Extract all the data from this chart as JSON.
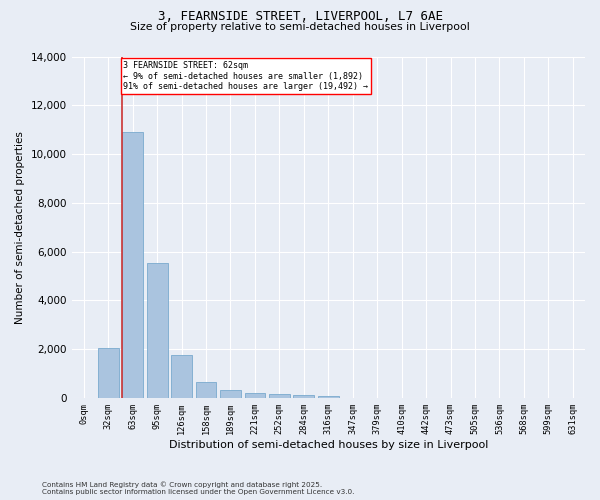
{
  "title_line1": "3, FEARNSIDE STREET, LIVERPOOL, L7 6AE",
  "title_line2": "Size of property relative to semi-detached houses in Liverpool",
  "xlabel": "Distribution of semi-detached houses by size in Liverpool",
  "ylabel": "Number of semi-detached properties",
  "categories": [
    "0sqm",
    "32sqm",
    "63sqm",
    "95sqm",
    "126sqm",
    "158sqm",
    "189sqm",
    "221sqm",
    "252sqm",
    "284sqm",
    "316sqm",
    "347sqm",
    "379sqm",
    "410sqm",
    "442sqm",
    "473sqm",
    "505sqm",
    "536sqm",
    "568sqm",
    "599sqm",
    "631sqm"
  ],
  "values": [
    0,
    2050,
    10900,
    5550,
    1750,
    650,
    320,
    200,
    150,
    120,
    100,
    0,
    0,
    0,
    0,
    0,
    0,
    0,
    0,
    0,
    0
  ],
  "bar_color": "#aac4df",
  "bar_edge_color": "#7aaace",
  "highlight_color": "#cc3333",
  "annotation_text_line1": "3 FEARNSIDE STREET: 62sqm",
  "annotation_text_line2": "← 9% of semi-detached houses are smaller (1,892)",
  "annotation_text_line3": "91% of semi-detached houses are larger (19,492) →",
  "ylim": [
    0,
    14000
  ],
  "yticks": [
    0,
    2000,
    4000,
    6000,
    8000,
    10000,
    12000,
    14000
  ],
  "background_color": "#e8edf5",
  "plot_bg_color": "#e8edf5",
  "grid_color": "#ffffff",
  "footnote_line1": "Contains HM Land Registry data © Crown copyright and database right 2025.",
  "footnote_line2": "Contains public sector information licensed under the Open Government Licence v3.0."
}
